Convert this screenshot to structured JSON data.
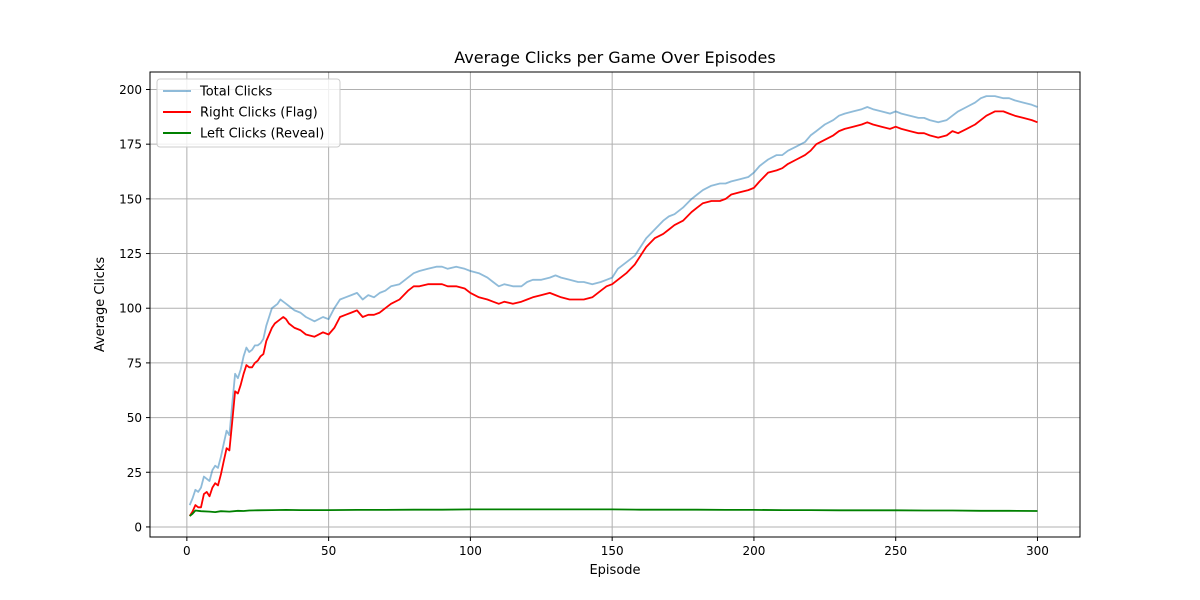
{
  "chart_data": {
    "type": "line",
    "title": "Average Clicks per Game Over Episodes",
    "xlabel": "Episode",
    "ylabel": "Average Clicks",
    "xlim": [
      -13,
      315
    ],
    "ylim": [
      -4.6,
      208
    ],
    "xticks": [
      0,
      50,
      100,
      150,
      200,
      250,
      300
    ],
    "yticks": [
      0,
      25,
      50,
      75,
      100,
      125,
      150,
      175,
      200
    ],
    "grid": true,
    "legend_position": "upper-left",
    "series": [
      {
        "name": "Total Clicks",
        "color": "#1f77b4",
        "opacity": 0.5,
        "x": [
          1,
          2,
          3,
          4,
          5,
          6,
          7,
          8,
          9,
          10,
          11,
          12,
          13,
          14,
          15,
          16,
          17,
          18,
          19,
          20,
          21,
          22,
          23,
          24,
          25,
          26,
          27,
          28,
          29,
          30,
          31,
          32,
          33,
          34,
          35,
          36,
          38,
          40,
          42,
          45,
          48,
          50,
          52,
          54,
          56,
          58,
          60,
          62,
          64,
          66,
          68,
          70,
          72,
          75,
          78,
          80,
          82,
          85,
          88,
          90,
          92,
          95,
          98,
          100,
          103,
          106,
          108,
          110,
          112,
          115,
          118,
          120,
          122,
          125,
          128,
          130,
          132,
          135,
          138,
          140,
          143,
          146,
          148,
          150,
          152,
          155,
          158,
          160,
          162,
          165,
          168,
          170,
          172,
          175,
          178,
          180,
          182,
          185,
          188,
          190,
          192,
          195,
          198,
          200,
          202,
          205,
          208,
          210,
          212,
          215,
          218,
          220,
          222,
          225,
          228,
          230,
          232,
          235,
          238,
          240,
          242,
          245,
          248,
          250,
          252,
          255,
          258,
          260,
          262,
          265,
          268,
          270,
          272,
          275,
          278,
          280,
          282,
          285,
          288,
          290,
          292,
          295,
          298,
          300
        ],
        "y": [
          10,
          13,
          17,
          16,
          18,
          23,
          22,
          21,
          26,
          28,
          27,
          32,
          38,
          44,
          42,
          56,
          70,
          68,
          72,
          78,
          82,
          80,
          81,
          83,
          83,
          84,
          86,
          92,
          96,
          100,
          101,
          102,
          104,
          103,
          102,
          101,
          99,
          98,
          96,
          94,
          96,
          95,
          100,
          104,
          105,
          106,
          107,
          104,
          106,
          105,
          107,
          108,
          110,
          111,
          114,
          116,
          117,
          118,
          119,
          119,
          118,
          119,
          118,
          117,
          116,
          114,
          112,
          110,
          111,
          110,
          110,
          112,
          113,
          113,
          114,
          115,
          114,
          113,
          112,
          112,
          111,
          112,
          113,
          114,
          118,
          121,
          124,
          128,
          132,
          136,
          140,
          142,
          143,
          146,
          150,
          152,
          154,
          156,
          157,
          157,
          158,
          159,
          160,
          162,
          165,
          168,
          170,
          170,
          172,
          174,
          176,
          179,
          181,
          184,
          186,
          188,
          189,
          190,
          191,
          192,
          191,
          190,
          189,
          190,
          189,
          188,
          187,
          187,
          186,
          185,
          186,
          188,
          190,
          192,
          194,
          196,
          197,
          197,
          196,
          196,
          195,
          194,
          193,
          192
        ]
      },
      {
        "name": "Right Clicks (Flag)",
        "color": "#ff0000",
        "opacity": 1,
        "x": [
          1,
          2,
          3,
          4,
          5,
          6,
          7,
          8,
          9,
          10,
          11,
          12,
          13,
          14,
          15,
          16,
          17,
          18,
          19,
          20,
          21,
          22,
          23,
          24,
          25,
          26,
          27,
          28,
          29,
          30,
          31,
          32,
          33,
          34,
          35,
          36,
          38,
          40,
          42,
          45,
          48,
          50,
          52,
          54,
          56,
          58,
          60,
          62,
          64,
          66,
          68,
          70,
          72,
          75,
          78,
          80,
          82,
          85,
          88,
          90,
          92,
          95,
          98,
          100,
          103,
          106,
          108,
          110,
          112,
          115,
          118,
          120,
          122,
          125,
          128,
          130,
          132,
          135,
          138,
          140,
          143,
          146,
          148,
          150,
          152,
          155,
          158,
          160,
          162,
          165,
          168,
          170,
          172,
          175,
          178,
          180,
          182,
          185,
          188,
          190,
          192,
          195,
          198,
          200,
          202,
          205,
          208,
          210,
          212,
          215,
          218,
          220,
          222,
          225,
          228,
          230,
          232,
          235,
          238,
          240,
          242,
          245,
          248,
          250,
          252,
          255,
          258,
          260,
          262,
          265,
          268,
          270,
          272,
          275,
          278,
          280,
          282,
          285,
          288,
          290,
          292,
          295,
          298,
          300
        ],
        "y": [
          5,
          7,
          10,
          9,
          9,
          15,
          16,
          14,
          18,
          20,
          19,
          24,
          30,
          36,
          35,
          48,
          62,
          61,
          65,
          70,
          74,
          73,
          73,
          75,
          76,
          78,
          79,
          85,
          88,
          91,
          93,
          94,
          95,
          96,
          95,
          93,
          91,
          90,
          88,
          87,
          89,
          88,
          91,
          96,
          97,
          98,
          99,
          96,
          97,
          97,
          98,
          100,
          102,
          104,
          108,
          110,
          110,
          111,
          111,
          111,
          110,
          110,
          109,
          107,
          105,
          104,
          103,
          102,
          103,
          102,
          103,
          104,
          105,
          106,
          107,
          106,
          105,
          104,
          104,
          104,
          105,
          108,
          110,
          111,
          113,
          116,
          120,
          124,
          128,
          132,
          134,
          136,
          138,
          140,
          144,
          146,
          148,
          149,
          149,
          150,
          152,
          153,
          154,
          155,
          158,
          162,
          163,
          164,
          166,
          168,
          170,
          172,
          175,
          177,
          179,
          181,
          182,
          183,
          184,
          185,
          184,
          183,
          182,
          183,
          182,
          181,
          180,
          180,
          179,
          178,
          179,
          181,
          180,
          182,
          184,
          186,
          188,
          190,
          190,
          189,
          188,
          187,
          186,
          185
        ]
      },
      {
        "name": "Left Clicks (Reveal)",
        "color": "#008000",
        "opacity": 1,
        "x": [
          1,
          2,
          3,
          5,
          8,
          10,
          12,
          15,
          18,
          20,
          22,
          25,
          30,
          35,
          40,
          50,
          60,
          70,
          80,
          90,
          100,
          110,
          120,
          130,
          140,
          150,
          160,
          170,
          180,
          190,
          200,
          210,
          220,
          230,
          240,
          250,
          260,
          270,
          280,
          290,
          300
        ],
        "y": [
          5,
          6,
          7.5,
          7.2,
          7,
          6.8,
          7.2,
          7,
          7.4,
          7.3,
          7.5,
          7.6,
          7.7,
          7.8,
          7.7,
          7.7,
          7.8,
          7.8,
          7.9,
          7.9,
          8,
          8,
          8,
          8,
          8,
          8,
          7.9,
          7.9,
          7.9,
          7.8,
          7.8,
          7.7,
          7.7,
          7.6,
          7.6,
          7.6,
          7.5,
          7.5,
          7.4,
          7.4,
          7.3
        ]
      }
    ]
  }
}
